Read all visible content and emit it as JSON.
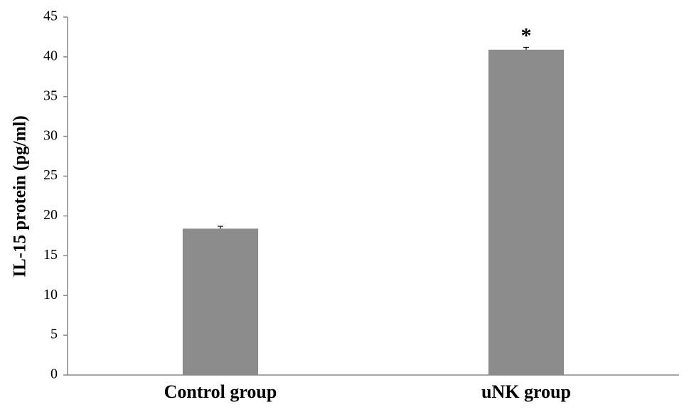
{
  "chart_data": {
    "type": "bar",
    "ylabel": "IL-15 protein (pg/ml)",
    "categories": [
      "Control group",
      "uNK group"
    ],
    "values": [
      18.4,
      40.9
    ],
    "errors": [
      0.3,
      0.3
    ],
    "color": "#8c8c8c",
    "ylim": [
      0,
      45
    ],
    "yticks": [
      0,
      5,
      10,
      15,
      20,
      25,
      30,
      35,
      40,
      45
    ],
    "grid": false,
    "annotations": [
      {
        "text": "*"
      }
    ]
  }
}
